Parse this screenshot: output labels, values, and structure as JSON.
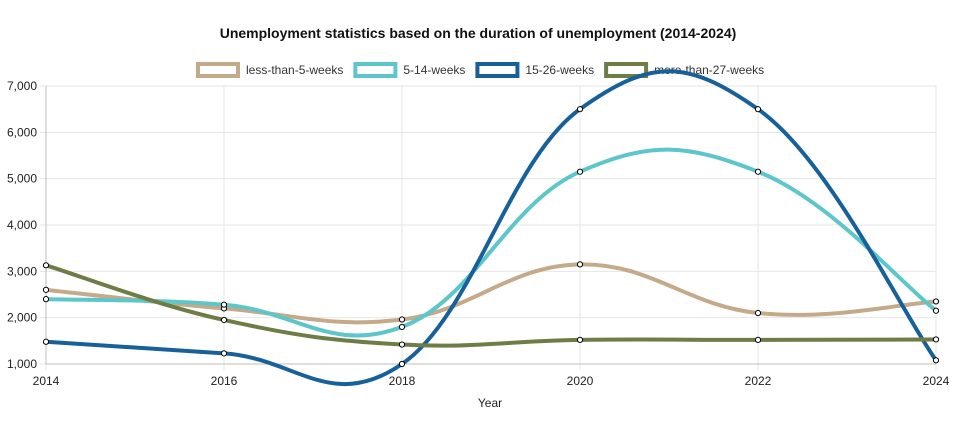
{
  "chart_data": {
    "type": "line",
    "title": "Unemployment statistics based on the duration of unemployment (2014-2024)",
    "xlabel": "Year",
    "ylabel": "",
    "x": [
      2014,
      2016,
      2018,
      2020,
      2022,
      2024
    ],
    "x_tick_labels": [
      "2014",
      "2016",
      "2018",
      "2020",
      "2022",
      "2024"
    ],
    "ylim": [
      1000,
      7000
    ],
    "y_ticks": [
      1000,
      2000,
      3000,
      4000,
      5000,
      6000,
      7000
    ],
    "y_tick_labels": [
      "1,000",
      "2,000",
      "3,000",
      "4,000",
      "5,000",
      "6,000",
      "7,000"
    ],
    "grid": true,
    "legend_position": "top",
    "series": [
      {
        "name": "less-than-5-weeks",
        "color": "#c4aa88",
        "values": [
          2600,
          2200,
          1960,
          3150,
          2100,
          2350
        ]
      },
      {
        "name": "5-14-weeks",
        "color": "#5cc6cb",
        "values": [
          2400,
          2280,
          1800,
          5150,
          5150,
          2150
        ]
      },
      {
        "name": "15-26-weeks",
        "color": "#17609a",
        "values": [
          1480,
          1230,
          1000,
          6500,
          6500,
          1080
        ]
      },
      {
        "name": "more-than-27-weeks",
        "color": "#6e7d45",
        "values": [
          3130,
          1950,
          1420,
          1520,
          1520,
          1530
        ]
      }
    ]
  }
}
